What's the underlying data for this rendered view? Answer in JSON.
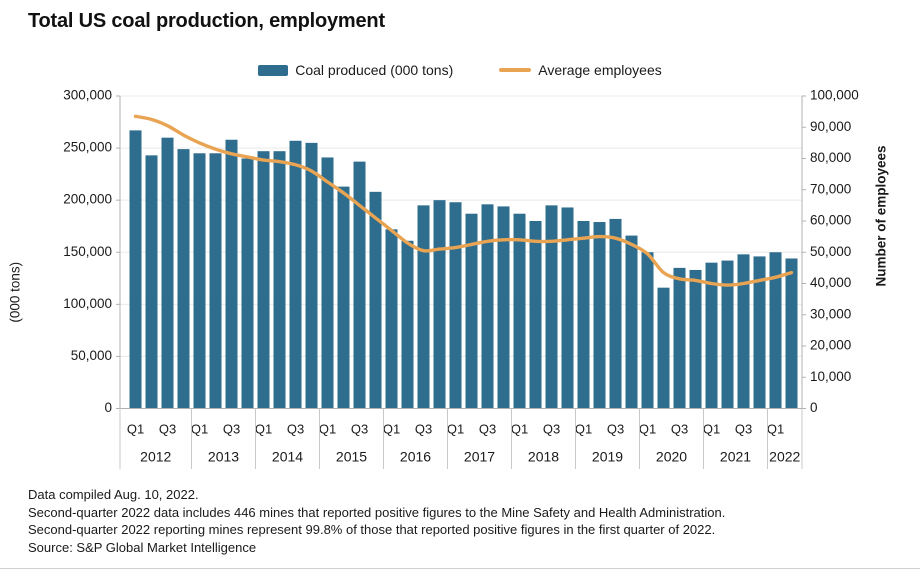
{
  "title": "Total US coal production, employment",
  "legend": {
    "bar_label": "Coal produced (000 tons)",
    "line_label": "Average employees"
  },
  "colors": {
    "bar": "#2E6D8E",
    "line": "#E8A452",
    "grid": "#EAEAEA",
    "axis": "#B0B0B0",
    "separator": "#C9C9C9",
    "text": "#1A1A1A"
  },
  "chart_data": {
    "type": "bar+line",
    "categories": [
      "2012 Q1",
      "2012 Q2",
      "2012 Q3",
      "2012 Q4",
      "2013 Q1",
      "2013 Q2",
      "2013 Q3",
      "2013 Q4",
      "2014 Q1",
      "2014 Q2",
      "2014 Q3",
      "2014 Q4",
      "2015 Q1",
      "2015 Q2",
      "2015 Q3",
      "2015 Q4",
      "2016 Q1",
      "2016 Q2",
      "2016 Q3",
      "2016 Q4",
      "2017 Q1",
      "2017 Q2",
      "2017 Q3",
      "2017 Q4",
      "2018 Q1",
      "2018 Q2",
      "2018 Q3",
      "2018 Q4",
      "2019 Q1",
      "2019 Q2",
      "2019 Q3",
      "2019 Q4",
      "2020 Q1",
      "2020 Q2",
      "2020 Q3",
      "2020 Q4",
      "2021 Q1",
      "2021 Q2",
      "2021 Q3",
      "2021 Q4",
      "2022 Q1",
      "2022 Q2"
    ],
    "series": [
      {
        "name": "Coal produced (000 tons)",
        "type": "bar",
        "axis": "left",
        "values": [
          267000,
          243000,
          260000,
          249000,
          245000,
          245000,
          258000,
          240000,
          247000,
          247000,
          257000,
          255000,
          241000,
          213000,
          237000,
          208000,
          172000,
          161000,
          195000,
          200000,
          198000,
          187000,
          196000,
          194000,
          187000,
          180000,
          195000,
          193000,
          180000,
          179000,
          182000,
          166000,
          150000,
          116000,
          135000,
          133000,
          140000,
          142000,
          148000,
          146000,
          150000,
          144000
        ]
      },
      {
        "name": "Average employees",
        "type": "line",
        "axis": "right",
        "values": [
          93500,
          92500,
          90500,
          87500,
          85000,
          83000,
          81500,
          80500,
          79500,
          79000,
          78000,
          76000,
          72500,
          69000,
          65000,
          61000,
          57000,
          53000,
          50500,
          51000,
          51500,
          52500,
          53500,
          54000,
          54000,
          53500,
          53500,
          54000,
          54500,
          55000,
          54500,
          52500,
          49500,
          43500,
          41500,
          41000,
          40000,
          39500,
          40000,
          41000,
          42000,
          43500
        ]
      }
    ],
    "left_axis": {
      "label": "(000 tons)",
      "min": 0,
      "max": 300000,
      "tick_interval": 50000,
      "ticks": [
        "0",
        "50,000",
        "100,000",
        "150,000",
        "200,000",
        "250,000",
        "300,000"
      ]
    },
    "right_axis": {
      "label": "Number of employees",
      "min": 0,
      "max": 100000,
      "tick_interval": 10000,
      "ticks": [
        "0",
        "10,000",
        "20,000",
        "30,000",
        "40,000",
        "50,000",
        "60,000",
        "70,000",
        "80,000",
        "90,000",
        "100,000"
      ]
    },
    "x_axis": {
      "years": [
        "2012",
        "2013",
        "2014",
        "2015",
        "2016",
        "2017",
        "2018",
        "2019",
        "2020",
        "2021",
        "2022"
      ],
      "quarter_labels": [
        "Q1",
        "Q3"
      ]
    },
    "grid": true,
    "legend_position": "top"
  },
  "footer": {
    "lines": [
      "Data compiled Aug. 10, 2022.",
      "Second-quarter 2022 data includes 446 mines that reported positive figures to the Mine Safety and Health Administration.",
      "Second-quarter 2022 reporting mines represent 99.8% of those that reported positive figures in the first quarter of 2022.",
      "Source: S&P Global Market Intelligence"
    ]
  }
}
